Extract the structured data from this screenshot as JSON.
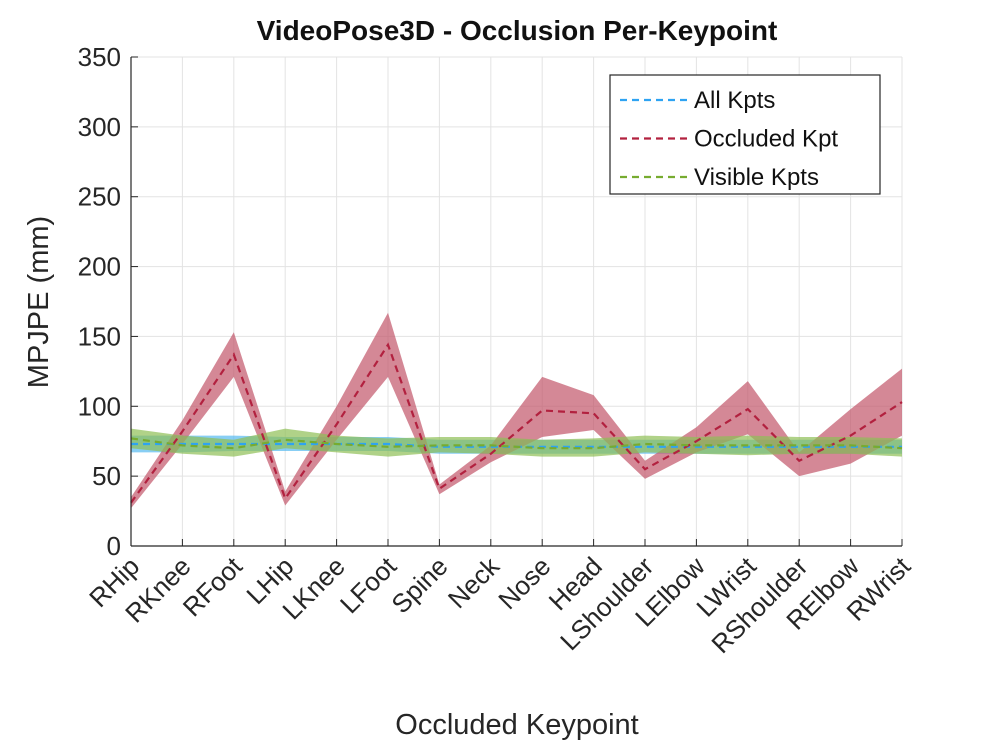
{
  "chart_data": {
    "type": "line",
    "title": "VideoPose3D - Occlusion Per-Keypoint",
    "xlabel": "Occluded Keypoint",
    "ylabel": "MPJPE (mm)",
    "ylim": [
      0,
      350
    ],
    "yticks": [
      0,
      50,
      100,
      150,
      200,
      250,
      300,
      350
    ],
    "grid": true,
    "legend_position": "top-right",
    "categories": [
      "RHip",
      "RKnee",
      "RFoot",
      "LHip",
      "LKnee",
      "LFoot",
      "Spine",
      "Neck",
      "Nose",
      "Head",
      "LShoulder",
      "LElbow",
      "LWrist",
      "RShoulder",
      "RElbow",
      "RWrist"
    ],
    "series": [
      {
        "name": "All Kpts",
        "color": "#2ea3f2",
        "band_color": "#56b9f0",
        "line_style": "dashed",
        "values": [
          73,
          73,
          73,
          73,
          73,
          73,
          71,
          71,
          71,
          71,
          71,
          71,
          71,
          71,
          71,
          71
        ],
        "upper": [
          79,
          79,
          79,
          78,
          78,
          78,
          76,
          76,
          76,
          76,
          76,
          76,
          76,
          76,
          76,
          76
        ],
        "lower": [
          67,
          67,
          68,
          68,
          68,
          68,
          66,
          66,
          66,
          66,
          66,
          66,
          66,
          66,
          66,
          66
        ]
      },
      {
        "name": "Occluded Kpt",
        "color": "#b2213f",
        "band_color": "#c25569",
        "line_style": "dashed",
        "values": [
          31,
          82,
          137,
          34,
          87,
          144,
          41,
          66,
          97,
          95,
          55,
          75,
          98,
          61,
          79,
          103
        ],
        "upper": [
          35,
          90,
          153,
          39,
          100,
          167,
          44,
          72,
          121,
          108,
          61,
          85,
          118,
          67,
          98,
          127
        ],
        "lower": [
          27,
          73,
          121,
          29,
          76,
          121,
          37,
          60,
          78,
          83,
          48,
          67,
          80,
          50,
          59,
          79
        ]
      },
      {
        "name": "Visible Kpts",
        "color": "#77ac30",
        "band_color": "#8fbf55",
        "line_style": "dashed",
        "values": [
          77,
          72,
          70,
          76,
          73,
          71,
          72,
          72,
          70,
          70,
          73,
          72,
          72,
          72,
          72,
          70
        ],
        "upper": [
          84,
          79,
          76,
          84,
          79,
          77,
          78,
          78,
          76,
          77,
          79,
          78,
          79,
          78,
          78,
          77
        ],
        "lower": [
          70,
          66,
          64,
          70,
          67,
          64,
          67,
          66,
          64,
          64,
          67,
          66,
          65,
          66,
          66,
          64
        ]
      }
    ]
  }
}
